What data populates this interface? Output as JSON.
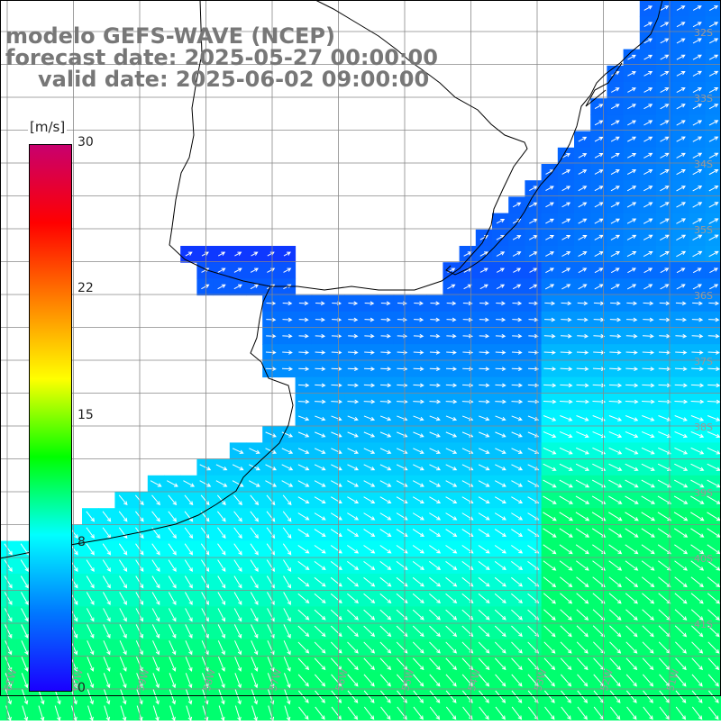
{
  "header": {
    "model": "modelo GEFS-WAVE (NCEP)",
    "forecast": "forecast date: 2025-05-27 00:00:00",
    "valid": "valid date: 2025-06-02 09:00:00"
  },
  "colorbar": {
    "unit": "[m/s]",
    "min": 0,
    "max": 30,
    "tick_labels": [
      {
        "value": 30,
        "label": "30"
      },
      {
        "value": 22,
        "label": "22"
      },
      {
        "value": 15,
        "label": "15"
      },
      {
        "value": 8,
        "label": "8"
      },
      {
        "value": 0,
        "label": "0"
      }
    ],
    "colors": [
      "#1a00ff",
      "#0078ff",
      "#00ffff",
      "#00ff00",
      "#ffff00",
      "#ff8000",
      "#ff0000",
      "#c8006e"
    ]
  },
  "map": {
    "land_color": "#ffffff",
    "coastline_color": "#000000",
    "grid_color": "#888888",
    "lon_labels": [
      "61W",
      "60W",
      "59W",
      "58W",
      "57W",
      "56W",
      "55W",
      "54W",
      "53W",
      "52W",
      "51W"
    ],
    "lat_labels": [
      "32S",
      "33S",
      "34S",
      "35S",
      "36S",
      "37S",
      "38S",
      "39S",
      "40S",
      "41S"
    ],
    "arrow_color": "#ffffff"
  }
}
